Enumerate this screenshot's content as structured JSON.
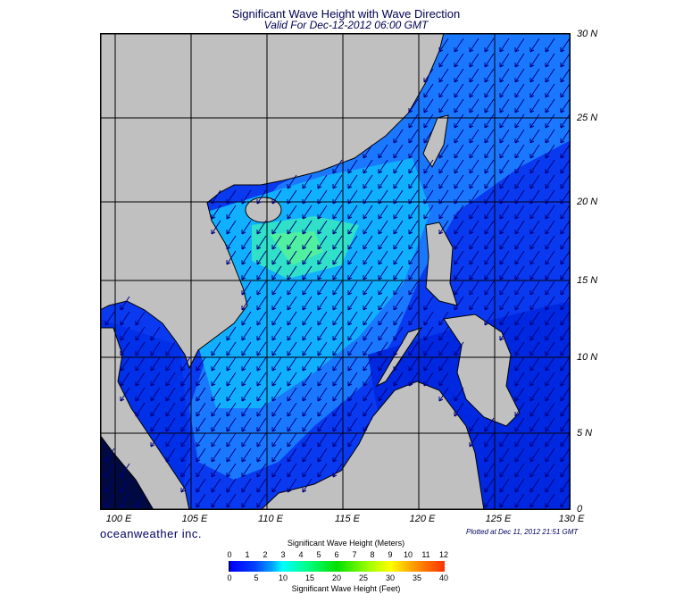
{
  "title": "Significant Wave Height with Wave Direction",
  "subtitle": "Valid For Dec-12-2012 06:00 GMT",
  "lon_labels": [
    "100 E",
    "105 E",
    "110 E",
    "115 E",
    "120 E",
    "125 E",
    "130 E"
  ],
  "lat_labels": [
    "30 N",
    "25 N",
    "20 N",
    "15 N",
    "10 N",
    "5 N",
    "0"
  ],
  "logo": "oceanweather inc.",
  "plotted": "Plotted at Dec 11, 2012 21:51 GMT",
  "colorbar": {
    "title_m": "Significant Wave Height (Meters)",
    "ticks_m": [
      "0",
      "1",
      "2",
      "3",
      "4",
      "5",
      "6",
      "7",
      "8",
      "9",
      "10",
      "11",
      "12"
    ],
    "ticks_ft": [
      "0",
      "5",
      "10",
      "15",
      "20",
      "25",
      "30",
      "35",
      "40"
    ],
    "title_ft": "Significant Wave Height (Feet)"
  },
  "colors": {
    "land": "#c0c0c0",
    "deep": "#0030f0",
    "mid": "#0090ff",
    "high": "#20e8c0",
    "arrow": "#000080"
  }
}
